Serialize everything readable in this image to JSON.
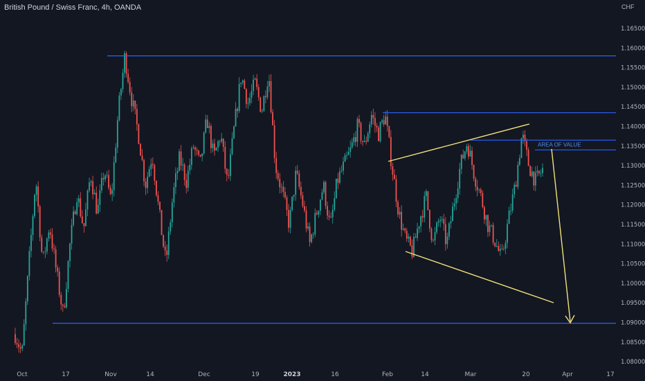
{
  "title": "British Pound / Swiss Franc, 4h, OANDA",
  "chart_data": {
    "type": "candlestick",
    "title": "British Pound / Swiss Franc, 4h, OANDA",
    "currency_label": "CHF",
    "ylim": [
      1.078,
      1.17
    ],
    "y_ticks": [
      "1.16500",
      "1.16000",
      "1.15500",
      "1.15000",
      "1.14500",
      "1.14000",
      "1.13500",
      "1.13000",
      "1.12500",
      "1.12000",
      "1.11500",
      "1.11000",
      "1.10500",
      "1.10000",
      "1.09500",
      "1.09000",
      "1.08500",
      "1.08000"
    ],
    "x_ticks": [
      {
        "label": "Oct",
        "bold": false
      },
      {
        "label": "17",
        "bold": false
      },
      {
        "label": "Nov",
        "bold": false
      },
      {
        "label": "14",
        "bold": false
      },
      {
        "label": "Dec",
        "bold": false
      },
      {
        "label": "19",
        "bold": false
      },
      {
        "label": "2023",
        "bold": true
      },
      {
        "label": "16",
        "bold": false
      },
      {
        "label": "Feb",
        "bold": false
      },
      {
        "label": "14",
        "bold": false
      },
      {
        "label": "Mar",
        "bold": false
      },
      {
        "label": "20",
        "bold": false
      },
      {
        "label": "Apr",
        "bold": false
      },
      {
        "label": "17",
        "bold": false
      }
    ],
    "price_path": [
      1.087,
      1.082,
      1.105,
      1.127,
      1.105,
      1.115,
      1.103,
      1.092,
      1.11,
      1.123,
      1.114,
      1.128,
      1.118,
      1.129,
      1.121,
      1.143,
      1.158,
      1.147,
      1.138,
      1.125,
      1.133,
      1.118,
      1.105,
      1.122,
      1.132,
      1.126,
      1.135,
      1.13,
      1.142,
      1.132,
      1.138,
      1.125,
      1.14,
      1.153,
      1.146,
      1.151,
      1.144,
      1.154,
      1.13,
      1.123,
      1.115,
      1.128,
      1.12,
      1.11,
      1.118,
      1.125,
      1.114,
      1.126,
      1.13,
      1.134,
      1.14,
      1.135,
      1.143,
      1.138,
      1.143,
      1.13,
      1.118,
      1.111,
      1.108,
      1.116,
      1.122,
      1.11,
      1.117,
      1.11,
      1.12,
      1.13,
      1.136,
      1.128,
      1.122,
      1.115,
      1.111,
      1.106,
      1.116,
      1.125,
      1.138,
      1.13,
      1.126,
      1.129
    ],
    "levels": [
      {
        "name": "resistance-top",
        "price": 1.158,
        "color": "#2962ff"
      },
      {
        "name": "resistance-mid",
        "price": 1.1435,
        "color": "#2962ff"
      },
      {
        "name": "area-of-value-upper",
        "price": 1.1365,
        "color": "#2962ff"
      },
      {
        "name": "area-of-value-lower",
        "price": 1.134,
        "color": "#2962ff"
      },
      {
        "name": "support-bottom",
        "price": 1.0898,
        "color": "#2962ff"
      }
    ],
    "annotations": [
      {
        "text": "AREA OF VALUE",
        "color": "#4d8df0"
      }
    ],
    "colors": {
      "up": "#26a69a",
      "down": "#ef5350",
      "level": "#2962ff",
      "trendline": "#f3e27a",
      "background": "#131722",
      "axis_text": "#b2b5be"
    }
  }
}
